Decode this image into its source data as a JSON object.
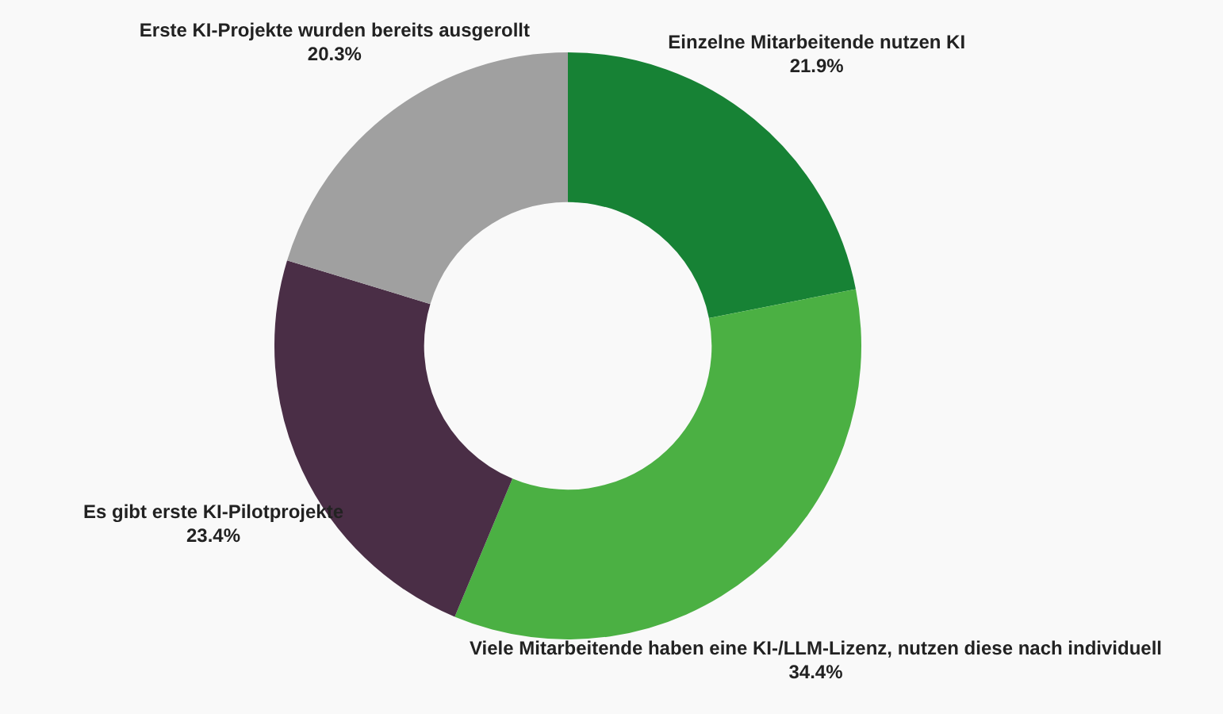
{
  "chart_data": {
    "type": "donut",
    "categories": [
      "Einzelne Mitarbeitende nutzen KI",
      "Viele Mitarbeitende haben eine KI-/LLM-Lizenz, nutzen diese nach individuell",
      "Es gibt erste KI-Pilotprojekte",
      "Erste KI-Projekte wurden bereits ausgerollt"
    ],
    "values": [
      21.9,
      34.4,
      23.4,
      20.3
    ],
    "value_labels": [
      "21.9%",
      "34.4%",
      "23.4%",
      "20.3%"
    ],
    "colors": [
      "#178235",
      "#4bb043",
      "#4a2e46",
      "#a0a0a0"
    ],
    "legend": false
  }
}
